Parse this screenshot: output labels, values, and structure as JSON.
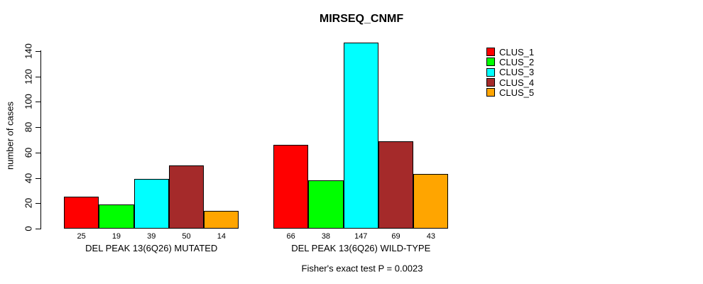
{
  "title": "MIRSEQ_CNMF",
  "y_axis_label": "number of cases",
  "annotation": "Fisher's exact test P = 0.0023",
  "chart_data": {
    "type": "bar",
    "title": "MIRSEQ_CNMF",
    "ylabel": "number of cases",
    "xlabel": "",
    "ylim": [
      0,
      140
    ],
    "yticks": [
      0,
      20,
      40,
      60,
      80,
      100,
      120,
      140
    ],
    "grid": false,
    "legend_position": "top-right",
    "categories": [
      "DEL PEAK 13(6Q26) MUTATED",
      "DEL PEAK 13(6Q26) WILD-TYPE"
    ],
    "series": [
      {
        "name": "CLUS_1",
        "color": "#FF0000",
        "values": [
          25,
          66
        ]
      },
      {
        "name": "CLUS_2",
        "color": "#00FF00",
        "values": [
          19,
          38
        ]
      },
      {
        "name": "CLUS_3",
        "color": "#00FFFF",
        "values": [
          39,
          147
        ]
      },
      {
        "name": "CLUS_4",
        "color": "#A52A2A",
        "values": [
          50,
          69
        ]
      },
      {
        "name": "CLUS_5",
        "color": "#FFA500",
        "values": [
          14,
          43
        ]
      }
    ],
    "bar_value_labels": [
      [
        25,
        19,
        39,
        50,
        14
      ],
      [
        66,
        38,
        147,
        69,
        43
      ]
    ],
    "annotation": "Fisher's exact test P = 0.0023"
  }
}
